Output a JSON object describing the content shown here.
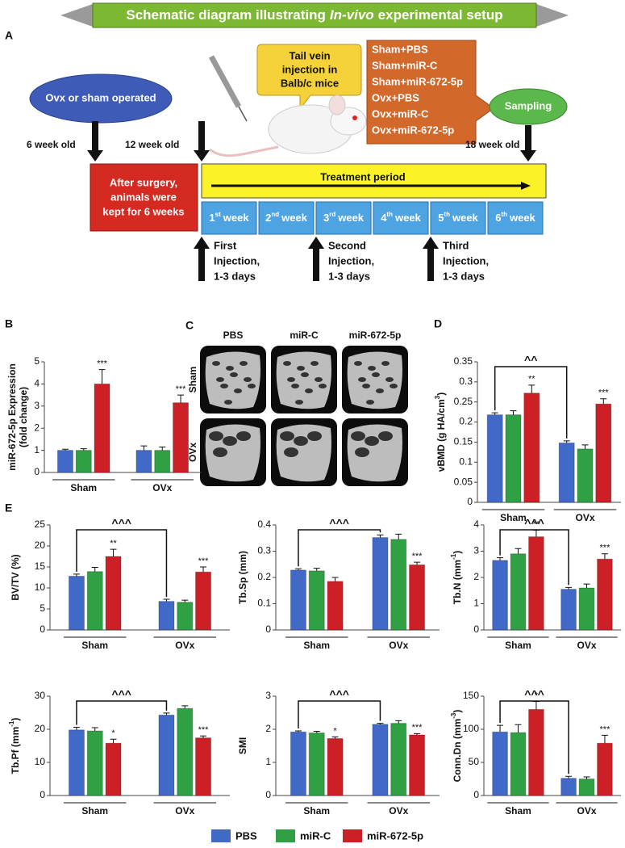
{
  "schematic": {
    "title": [
      "Schematic diagram illustrating",
      "In-vivo",
      "experimental setup"
    ],
    "panel": "A",
    "surgery": "Ovx or sham operated",
    "callout": [
      "Tail vein",
      "injection in",
      "Balb/c mice"
    ],
    "groups": [
      "Sham+PBS",
      "Sham+miR-C",
      "Sham+miR-672-5p",
      "Ovx+PBS",
      "Ovx+miR-C",
      "Ovx+miR-672-5p"
    ],
    "sampling": "Sampling",
    "ages": [
      "6 week old",
      "12 week old",
      "18 week old"
    ],
    "waiting": [
      "After surgery,",
      "animals were",
      "kept for 6 weeks"
    ],
    "treatment": "Treatment period",
    "weeks": [
      [
        "1",
        "st",
        "week"
      ],
      [
        "2",
        "nd",
        "week"
      ],
      [
        "3",
        "rd",
        "week"
      ],
      [
        "4",
        "th",
        "week"
      ],
      [
        "5",
        "th",
        "week"
      ],
      [
        "6",
        "th",
        "week"
      ]
    ],
    "injections": [
      [
        "First",
        "Injection,",
        "1-3 days"
      ],
      [
        "Second",
        "Injection,",
        "1-3 days"
      ],
      [
        "Third",
        "Injection,",
        "1-3 days"
      ]
    ]
  },
  "panel_c": {
    "label": "C",
    "columns": [
      "PBS",
      "miR-C",
      "miR-672-5p"
    ],
    "rows": [
      "Sham",
      "OVx"
    ]
  },
  "legend": [
    {
      "name": "PBS",
      "color": "#4169c8"
    },
    {
      "name": "miR-C",
      "color": "#2fa043"
    },
    {
      "name": "miR-672-5p",
      "color": "#cc1f26"
    }
  ],
  "chart_data": [
    {
      "type": "bar",
      "panel": "B",
      "ylabel": "miR-672-5p Expression",
      "ylabel2": "(fold change)",
      "categories": [
        "Sham",
        "OVx"
      ],
      "ylim": [
        0,
        5
      ],
      "yticks": [
        0,
        1,
        2,
        3,
        4,
        5
      ],
      "series": [
        {
          "values": [
            1.0,
            1.0
          ],
          "errors": [
            0.05,
            0.2
          ]
        },
        {
          "values": [
            1.0,
            1.0
          ],
          "errors": [
            0.07,
            0.15
          ]
        },
        {
          "values": [
            4.0,
            3.15
          ],
          "errors": [
            0.65,
            0.35
          ],
          "significance": [
            "***",
            "***"
          ]
        }
      ]
    },
    {
      "type": "bar",
      "panel": "D",
      "ylabel": "vBMD (g HA/cm",
      "ylabel_sup": "3",
      "ylabel_end": ")",
      "categories": [
        "Sham",
        "OVx"
      ],
      "ylim": [
        0,
        0.35
      ],
      "yticks": [
        0,
        0.05,
        0.1,
        0.15,
        0.2,
        0.25,
        0.3,
        0.35
      ],
      "bracket": "^^",
      "series": [
        {
          "values": [
            0.218,
            0.148
          ],
          "errors": [
            0.005,
            0.005
          ]
        },
        {
          "values": [
            0.218,
            0.133
          ],
          "errors": [
            0.01,
            0.01
          ]
        },
        {
          "values": [
            0.272,
            0.245
          ],
          "errors": [
            0.02,
            0.013
          ],
          "significance": [
            "**",
            "***"
          ]
        }
      ]
    },
    {
      "type": "bar",
      "panel": "E",
      "ylabel": "BV/TV (%)",
      "categories": [
        "Sham",
        "OVx"
      ],
      "ylim": [
        0,
        25
      ],
      "yticks": [
        0,
        5,
        10,
        15,
        20,
        25
      ],
      "bracket": "^^^",
      "series": [
        {
          "values": [
            12.8,
            6.8
          ],
          "errors": [
            0.5,
            0.5
          ]
        },
        {
          "values": [
            13.9,
            6.6
          ],
          "errors": [
            1.0,
            0.5
          ]
        },
        {
          "values": [
            17.5,
            13.8
          ],
          "errors": [
            1.7,
            1.2
          ],
          "significance": [
            "**",
            "***"
          ]
        }
      ]
    },
    {
      "type": "bar",
      "ylabel": "Tb.Sp (mm)",
      "categories": [
        "Sham",
        "OVx"
      ],
      "ylim": [
        0,
        0.4
      ],
      "yticks": [
        0,
        0.1,
        0.2,
        0.3,
        0.4
      ],
      "bracket": "^^^",
      "series": [
        {
          "values": [
            0.228,
            0.352
          ],
          "errors": [
            0.005,
            0.01
          ]
        },
        {
          "values": [
            0.225,
            0.345
          ],
          "errors": [
            0.01,
            0.02
          ]
        },
        {
          "values": [
            0.185,
            0.248
          ],
          "errors": [
            0.015,
            0.01
          ],
          "significance": [
            null,
            "***"
          ]
        }
      ]
    },
    {
      "type": "bar",
      "ylabel": "Tb.N (mm",
      "ylabel_sup": "-1",
      "ylabel_end": ")",
      "categories": [
        "Sham",
        "OVx"
      ],
      "ylim": [
        0,
        4
      ],
      "yticks": [
        0,
        1,
        2,
        3,
        4
      ],
      "bracket": "^^^",
      "series": [
        {
          "values": [
            2.65,
            1.55
          ],
          "errors": [
            0.1,
            0.07
          ]
        },
        {
          "values": [
            2.9,
            1.6
          ],
          "errors": [
            0.2,
            0.15
          ]
        },
        {
          "values": [
            3.55,
            2.7
          ],
          "errors": [
            0.25,
            0.2
          ],
          "significance": [
            "**",
            "***"
          ]
        }
      ]
    },
    {
      "type": "bar",
      "ylabel": "Tb.Pf (mm",
      "ylabel_sup": "-1",
      "ylabel_end": ")",
      "categories": [
        "Sham",
        "OVx"
      ],
      "ylim": [
        0,
        30
      ],
      "yticks": [
        0,
        10,
        20,
        30
      ],
      "bracket": "^^^",
      "series": [
        {
          "values": [
            19.8,
            24.3
          ],
          "errors": [
            0.8,
            0.6
          ]
        },
        {
          "values": [
            19.5,
            26.3
          ],
          "errors": [
            1.0,
            0.8
          ]
        },
        {
          "values": [
            15.8,
            17.4
          ],
          "errors": [
            1.2,
            0.6
          ],
          "significance": [
            "*",
            "***"
          ]
        }
      ]
    },
    {
      "type": "bar",
      "ylabel": "SMI",
      "categories": [
        "Sham",
        "OVx"
      ],
      "ylim": [
        0,
        3
      ],
      "yticks": [
        0,
        1,
        2,
        3
      ],
      "bracket": "^^^",
      "series": [
        {
          "values": [
            1.92,
            2.15
          ],
          "errors": [
            0.03,
            0.03
          ]
        },
        {
          "values": [
            1.89,
            2.18
          ],
          "errors": [
            0.05,
            0.08
          ]
        },
        {
          "values": [
            1.72,
            1.83
          ],
          "errors": [
            0.05,
            0.04
          ],
          "significance": [
            "*",
            "***"
          ]
        }
      ]
    },
    {
      "type": "bar",
      "ylabel": "Conn.Dn (mm",
      "ylabel_sup": "-3",
      "ylabel_end": ")",
      "categories": [
        "Sham",
        "OVx"
      ],
      "ylim": [
        0,
        150
      ],
      "yticks": [
        0,
        50,
        100,
        150
      ],
      "bracket": "^^^",
      "series": [
        {
          "values": [
            96,
            26
          ],
          "errors": [
            10,
            3
          ]
        },
        {
          "values": [
            95,
            25
          ],
          "errors": [
            12,
            3
          ]
        },
        {
          "values": [
            130,
            79
          ],
          "errors": [
            12,
            12
          ],
          "significance": [
            "*",
            "***"
          ]
        }
      ]
    }
  ]
}
